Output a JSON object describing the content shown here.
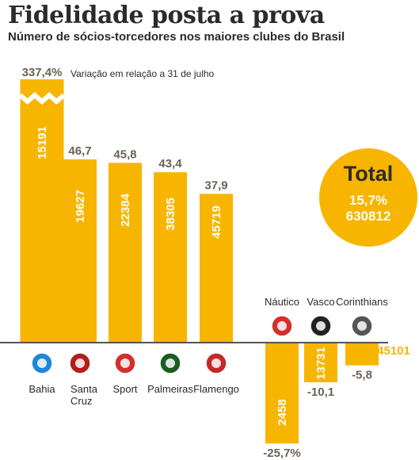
{
  "chart_data": {
    "type": "bar",
    "title": "Fidelidade posta a prova",
    "subtitle": "Número de sócios-torcedores nos maiores clubes do Brasil",
    "note": "Variação em relação a 31 de julho",
    "categories": [
      "Bahia",
      "Santa Cruz",
      "Sport",
      "Palmeiras",
      "Flamengo",
      "Náutico",
      "Vasco",
      "Corinthians"
    ],
    "variation_labels": [
      "337,4%",
      "46,7",
      "45,8",
      "43,4",
      "37,9",
      "-25,7%",
      "-10,1",
      "-5,8"
    ],
    "variation": [
      337.4,
      46.7,
      45.8,
      43.4,
      37.9,
      -25.7,
      -10.1,
      -5.8
    ],
    "members": [
      15191,
      19627,
      22384,
      38305,
      45719,
      2458,
      13731,
      45101
    ],
    "axis_break": "Bahia bar truncated (zigzag break)",
    "total": {
      "label": "Total",
      "variation_label": "15,7%",
      "value": "630812"
    },
    "colors": {
      "bar": "#f7b500",
      "baseline": "#555555",
      "text": "#2b2b2b",
      "value_text": "#ffffff",
      "variation_text": "#6b6257"
    },
    "crest_icons": [
      "bahia-crest-icon",
      "santa-cruz-crest-icon",
      "sport-crest-icon",
      "palmeiras-crest-icon",
      "flamengo-crest-icon",
      "nautico-crest-icon",
      "vasco-crest-icon",
      "corinthians-crest-icon"
    ]
  }
}
